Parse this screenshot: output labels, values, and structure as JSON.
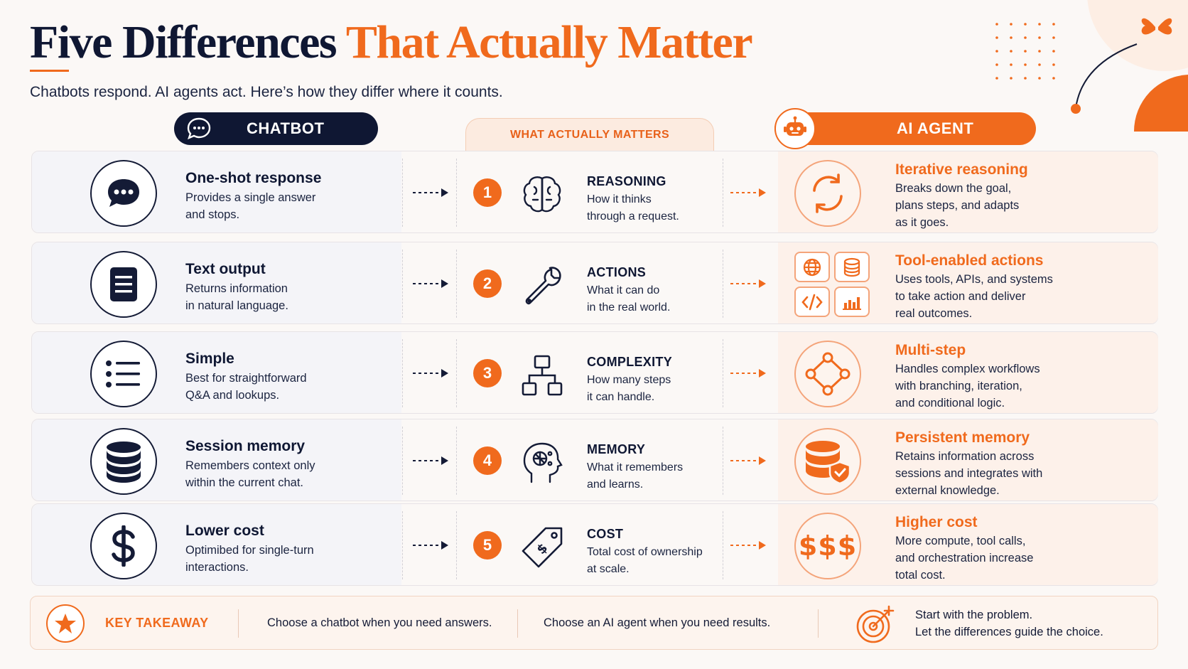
{
  "header": {
    "title_main": "Five Differences",
    "title_accent": "That Actually Matter",
    "subtitle": "Chatbots respond. AI agents act. Here’s how they differ where it counts."
  },
  "columns": {
    "chatbot": "CHATBOT",
    "middle": "WHAT ACTUALLY MATTERS",
    "agent": "AI AGENT"
  },
  "rows": [
    {
      "left_icon": "chat-bubble-icon",
      "left_title": "One-shot response",
      "left_desc": "Provides a single answer\nand stops.",
      "num": "1",
      "mid_icon": "brain-icon",
      "mid_title": "REASONING",
      "mid_desc": "How it thinks\nthrough a request.",
      "right_icon": "refresh-cycle-icon",
      "right_title": "Iterative reasoning",
      "right_desc": "Breaks down the goal,\nplans steps, and adapts\nas it goes."
    },
    {
      "left_icon": "document-icon",
      "left_title": "Text output",
      "left_desc": "Returns information\nin natural language.",
      "num": "2",
      "mid_icon": "wrench-icon",
      "mid_title": "ACTIONS",
      "mid_desc": "What it can do\nin the real world.",
      "right_icon": "tools-grid-icon",
      "right_title": "Tool-enabled actions",
      "right_desc": "Uses tools, APIs, and systems\nto take action and deliver\nreal outcomes."
    },
    {
      "left_icon": "list-icon",
      "left_title": "Simple",
      "left_desc": "Best for straightforward\nQ&A and lookups.",
      "num": "3",
      "mid_icon": "hierarchy-icon",
      "mid_title": "COMPLEXITY",
      "mid_desc": "How many steps\nit can handle.",
      "right_icon": "workflow-icon",
      "right_title": "Multi-step",
      "right_desc": "Handles complex workflows\nwith branching, iteration,\nand conditional logic."
    },
    {
      "left_icon": "database-icon",
      "left_title": "Session memory",
      "left_desc": "Remembers context only\nwithin the current chat.",
      "num": "4",
      "mid_icon": "head-memory-icon",
      "mid_title": "MEMORY",
      "mid_desc": "What it remembers\nand learns.",
      "right_icon": "database-shield-icon",
      "right_title": "Persistent memory",
      "right_desc": "Retains information across\nsessions and integrates with\nexternal knowledge."
    },
    {
      "left_icon": "dollar-icon",
      "left_title": "Lower cost",
      "left_desc": "Optimibed for single-turn\ninteractions.",
      "num": "5",
      "mid_icon": "price-tag-icon",
      "mid_title": "COST",
      "mid_desc": "Total cost of ownership\nat scale.",
      "right_icon": "triple-dollar-icon",
      "right_dollars": "$$$",
      "right_title": "Higher cost",
      "right_desc": "More compute, tool calls,\nand orchestration increase\ntotal cost."
    }
  ],
  "takeaway": {
    "label": "KEY TAKEAWAY",
    "chatbot_text": "Choose a chatbot when you need answers.",
    "agent_text": "Choose an AI agent when you need results.",
    "closing": "Start with the problem.\nLet the differences guide the choice."
  },
  "colors": {
    "navy": "#0f1733",
    "orange": "#f06a1d",
    "left_row_bg": "#f4f4f8",
    "right_row_bg": "#fdf1ea"
  }
}
